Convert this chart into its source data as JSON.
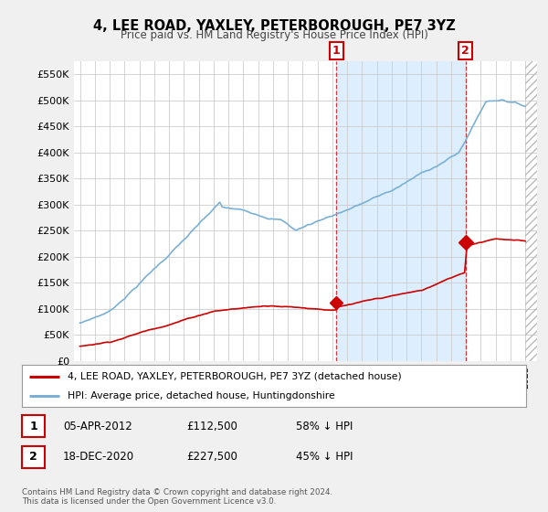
{
  "title": "4, LEE ROAD, YAXLEY, PETERBOROUGH, PE7 3YZ",
  "subtitle": "Price paid vs. HM Land Registry's House Price Index (HPI)",
  "ylim": [
    0,
    575000
  ],
  "yticks": [
    0,
    50000,
    100000,
    150000,
    200000,
    250000,
    300000,
    350000,
    400000,
    450000,
    500000,
    550000
  ],
  "ytick_labels": [
    "£0",
    "£50K",
    "£100K",
    "£150K",
    "£200K",
    "£250K",
    "£300K",
    "£350K",
    "£400K",
    "£450K",
    "£500K",
    "£550K"
  ],
  "background_color": "#f0f0f0",
  "plot_bg_color": "#ffffff",
  "hpi_color": "#7ab0d4",
  "price_color": "#cc0000",
  "shade_color": "#ddeeff",
  "legend_label_price": "4, LEE ROAD, YAXLEY, PETERBOROUGH, PE7 3YZ (detached house)",
  "legend_label_hpi": "HPI: Average price, detached house, Huntingdonshire",
  "sale1_price": 112500,
  "sale1_x": 2012.27,
  "sale2_price": 227500,
  "sale2_x": 2020.97,
  "footer": "Contains HM Land Registry data © Crown copyright and database right 2024.\nThis data is licensed under the Open Government Licence v3.0.",
  "table_row1": [
    "1",
    "05-APR-2012",
    "£112,500",
    "58% ↓ HPI"
  ],
  "table_row2": [
    "2",
    "18-DEC-2020",
    "£227,500",
    "45% ↓ HPI"
  ]
}
